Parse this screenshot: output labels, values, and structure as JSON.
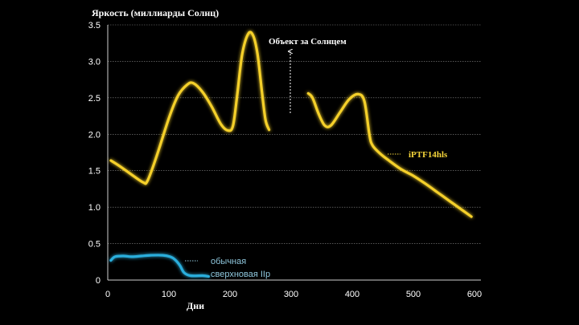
{
  "chart_data": {
    "type": "line",
    "title": "",
    "ylabel": "Яркость (миллиарды Солнц)",
    "xlabel": "Дни",
    "xlim": [
      0,
      600
    ],
    "ylim": [
      0,
      3.5
    ],
    "x_ticks": [
      0,
      100,
      200,
      300,
      400,
      500,
      600
    ],
    "y_ticks": [
      0,
      0.5,
      1.0,
      1.5,
      2.0,
      2.5,
      3.0,
      3.5
    ],
    "x_tick_labels": [
      "0",
      "100",
      "200",
      "300",
      "400",
      "500",
      "600"
    ],
    "y_tick_labels": [
      "0",
      "0.5",
      "1.0",
      "1.5",
      "2.0",
      "2.5",
      "3.0",
      "3.5"
    ],
    "grid": true,
    "series": [
      {
        "name": "iPTF14hls",
        "color": "#f5d02a",
        "segments": [
          [
            [
              5,
              1.64
            ],
            [
              20,
              1.56
            ],
            [
              40,
              1.44
            ],
            [
              58,
              1.34
            ],
            [
              65,
              1.36
            ],
            [
              80,
              1.7
            ],
            [
              100,
              2.22
            ],
            [
              115,
              2.53
            ],
            [
              130,
              2.68
            ],
            [
              140,
              2.7
            ],
            [
              155,
              2.58
            ],
            [
              170,
              2.38
            ],
            [
              185,
              2.14
            ],
            [
              197,
              2.05
            ],
            [
              205,
              2.12
            ],
            [
              212,
              2.55
            ],
            [
              220,
              3.1
            ],
            [
              230,
              3.38
            ],
            [
              238,
              3.35
            ],
            [
              245,
              3.1
            ],
            [
              252,
              2.6
            ],
            [
              258,
              2.2
            ],
            [
              264,
              2.06
            ]
          ],
          [
            [
              328,
              2.56
            ],
            [
              335,
              2.5
            ],
            [
              345,
              2.28
            ],
            [
              355,
              2.12
            ],
            [
              365,
              2.12
            ],
            [
              380,
              2.3
            ],
            [
              395,
              2.48
            ],
            [
              410,
              2.55
            ],
            [
              420,
              2.45
            ],
            [
              428,
              2.0
            ],
            [
              433,
              1.85
            ],
            [
              445,
              1.74
            ],
            [
              460,
              1.64
            ],
            [
              480,
              1.52
            ],
            [
              500,
              1.43
            ],
            [
              520,
              1.32
            ],
            [
              540,
              1.2
            ],
            [
              560,
              1.08
            ],
            [
              580,
              0.96
            ],
            [
              595,
              0.87
            ]
          ]
        ]
      },
      {
        "name": "обычная сверхновая IIp",
        "color": "#2aaedc",
        "segments": [
          [
            [
              5,
              0.27
            ],
            [
              12,
              0.32
            ],
            [
              25,
              0.33
            ],
            [
              40,
              0.32
            ],
            [
              55,
              0.33
            ],
            [
              70,
              0.34
            ],
            [
              90,
              0.34
            ],
            [
              102,
              0.32
            ],
            [
              110,
              0.28
            ],
            [
              118,
              0.2
            ],
            [
              125,
              0.1
            ],
            [
              135,
              0.06
            ],
            [
              155,
              0.06
            ],
            [
              165,
              0.05
            ]
          ]
        ]
      }
    ],
    "annotations": {
      "hidden": "Объект за Солнцем",
      "iptf": "iPTF14hls",
      "sn_line1": "обычная",
      "sn_line2": "сверхновая IIp"
    }
  }
}
